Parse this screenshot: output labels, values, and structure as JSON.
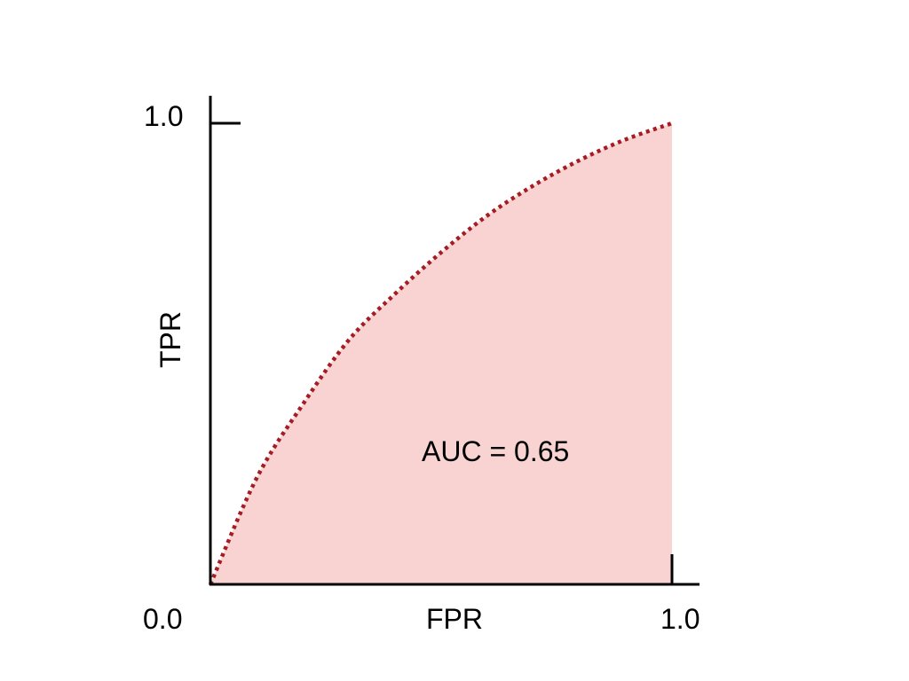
{
  "chart_data": {
    "type": "area",
    "title": "",
    "xlabel": "FPR",
    "ylabel": "TPR",
    "xlim": [
      0,
      1
    ],
    "ylim": [
      0,
      1
    ],
    "x_tick_labels": [
      "0.0",
      "1.0"
    ],
    "y_tick_labels": [
      "1.0"
    ],
    "grid": false,
    "annotation": "AUC = 0.65",
    "series": [
      {
        "x": [
          0,
          0.1,
          0.2,
          0.3,
          0.4,
          0.5,
          0.6,
          0.7,
          0.8,
          0.9,
          1.0
        ],
        "y": [
          0,
          0.23,
          0.39,
          0.53,
          0.63,
          0.72,
          0.8,
          0.865,
          0.92,
          0.965,
          1.0
        ]
      }
    ],
    "colors": {
      "fill": "#f8d3d1",
      "line": "#a51c24",
      "axis": "#000000"
    }
  }
}
